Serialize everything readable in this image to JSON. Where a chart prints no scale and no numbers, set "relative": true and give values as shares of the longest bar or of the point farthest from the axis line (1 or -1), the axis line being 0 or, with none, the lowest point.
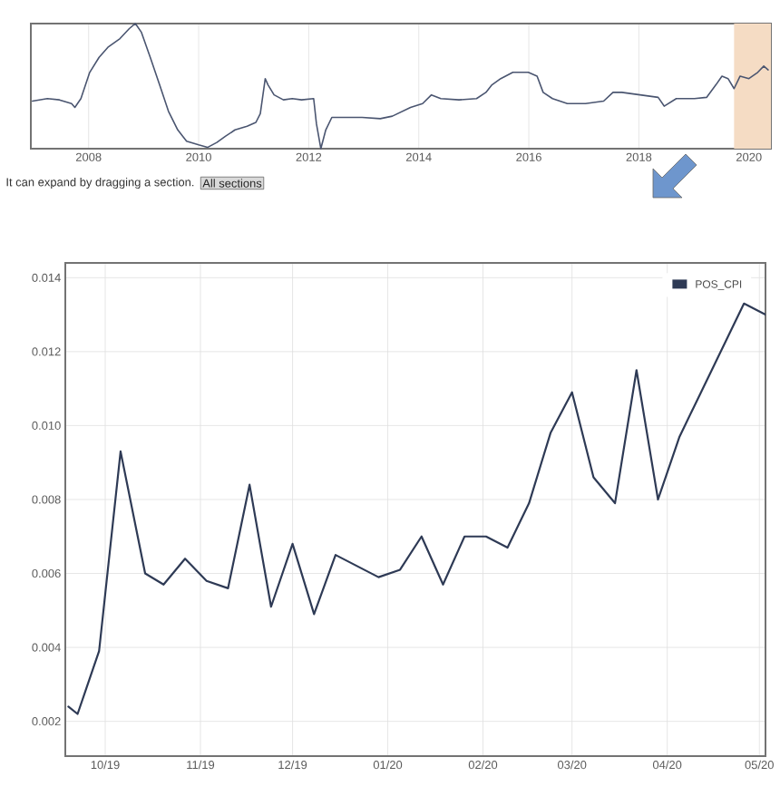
{
  "chart_data": [
    {
      "type": "line",
      "relative": true,
      "color": "#4a5570",
      "xlim": [
        2006.95,
        2020.4
      ],
      "xticks": [
        2008,
        2010,
        2012,
        2014,
        2016,
        2018,
        2020
      ],
      "tick_labels": "x",
      "grid": "x",
      "x": [
        2006.98,
        2007.25,
        2007.47,
        2007.69,
        2007.75,
        2007.86,
        2008.02,
        2008.19,
        2008.35,
        2008.57,
        2008.74,
        2008.85,
        2008.96,
        2009.12,
        2009.29,
        2009.45,
        2009.62,
        2009.78,
        2010.0,
        2010.16,
        2010.33,
        2010.49,
        2010.66,
        2010.88,
        2011.04,
        2011.12,
        2011.21,
        2011.26,
        2011.37,
        2011.54,
        2011.7,
        2011.87,
        2012.09,
        2012.14,
        2012.22,
        2012.31,
        2012.42,
        2012.64,
        2012.97,
        2013.3,
        2013.52,
        2013.85,
        2014.07,
        2014.23,
        2014.4,
        2014.73,
        2015.05,
        2015.22,
        2015.33,
        2015.49,
        2015.71,
        2015.99,
        2016.15,
        2016.26,
        2016.43,
        2016.7,
        2017.03,
        2017.36,
        2017.53,
        2017.69,
        2018.02,
        2018.35,
        2018.46,
        2018.68,
        2019.01,
        2019.23,
        2019.4,
        2019.51,
        2019.62,
        2019.73,
        2019.84,
        2020.0,
        2020.16,
        2020.27,
        2020.35
      ],
      "values": [
        0.38,
        0.4,
        0.39,
        0.36,
        0.33,
        0.4,
        0.61,
        0.73,
        0.81,
        0.88,
        0.96,
        1.0,
        0.93,
        0.73,
        0.51,
        0.3,
        0.15,
        0.06,
        0.03,
        0.01,
        0.05,
        0.1,
        0.15,
        0.18,
        0.21,
        0.28,
        0.56,
        0.51,
        0.43,
        0.39,
        0.4,
        0.39,
        0.4,
        0.2,
        0.0,
        0.15,
        0.25,
        0.25,
        0.25,
        0.24,
        0.26,
        0.33,
        0.36,
        0.43,
        0.4,
        0.39,
        0.4,
        0.45,
        0.51,
        0.56,
        0.61,
        0.61,
        0.58,
        0.45,
        0.4,
        0.36,
        0.36,
        0.38,
        0.45,
        0.45,
        0.43,
        0.41,
        0.34,
        0.4,
        0.4,
        0.41,
        0.51,
        0.58,
        0.56,
        0.48,
        0.58,
        0.56,
        0.61,
        0.66,
        0.63
      ],
      "bands": [
        {
          "axis": "x",
          "from": 2019.73,
          "to": 2020.4,
          "color": "#f5dcc4"
        }
      ],
      "annotations": [
        "It can expand by dragging a section.",
        "All sections"
      ]
    },
    {
      "type": "line",
      "grid": true,
      "legend": "top right",
      "xlim": [
        "2019-09-18",
        "2020-05-03"
      ],
      "xticks": [
        {
          "value": "2019-10-01",
          "label": "10/19"
        },
        {
          "value": "2019-11-01",
          "label": "11/19"
        },
        {
          "value": "2019-12-01",
          "label": "12/19"
        },
        {
          "value": "2020-01-01",
          "label": "01/20"
        },
        {
          "value": "2020-02-01",
          "label": "02/20"
        },
        {
          "value": "2020-03-01",
          "label": "03/20"
        },
        {
          "value": "2020-04-01",
          "label": "04/20"
        },
        {
          "value": "2020-05-01",
          "label": "05/20"
        }
      ],
      "ylim": [
        0.00106,
        0.0144
      ],
      "yticks": [
        {
          "value": 0.002,
          "label": "0.002"
        },
        {
          "value": 0.004,
          "label": "0.004"
        },
        {
          "value": 0.006,
          "label": "0.006"
        },
        {
          "value": 0.008,
          "label": "0.008"
        },
        {
          "value": 0.01,
          "label": "0.010"
        },
        {
          "value": 0.012,
          "label": "0.012"
        },
        {
          "value": 0.014,
          "label": "0.014"
        }
      ],
      "x": [
        "2019-09-19",
        "2019-09-22",
        "2019-09-29",
        "2019-10-06",
        "2019-10-14",
        "2019-10-20",
        "2019-10-27",
        "2019-11-03",
        "2019-11-10",
        "2019-11-17",
        "2019-11-24",
        "2019-12-01",
        "2019-12-08",
        "2019-12-15",
        "2019-12-22",
        "2019-12-29",
        "2020-01-05",
        "2020-01-12",
        "2020-01-19",
        "2020-01-26",
        "2020-02-02",
        "2020-02-09",
        "2020-02-16",
        "2020-02-23",
        "2020-03-01",
        "2020-03-08",
        "2020-03-15",
        "2020-03-22",
        "2020-03-29",
        "2020-04-05",
        "2020-04-12",
        "2020-04-19",
        "2020-04-26",
        "2020-05-03"
      ],
      "series": [
        {
          "name": "POS_CPI",
          "color": "#2e3a55",
          "values": [
            0.0024,
            0.0022,
            0.0039,
            0.0093,
            0.006,
            0.0057,
            0.0064,
            0.0058,
            0.0056,
            0.0084,
            0.0051,
            0.0068,
            0.0049,
            0.0065,
            0.0062,
            0.0059,
            0.0061,
            0.007,
            0.0057,
            0.007,
            0.007,
            0.0067,
            0.0079,
            0.0098,
            0.0109,
            0.0086,
            0.0079,
            0.0115,
            0.008,
            0.0097,
            0.0109,
            0.0121,
            0.0133,
            0.013
          ]
        }
      ]
    }
  ]
}
